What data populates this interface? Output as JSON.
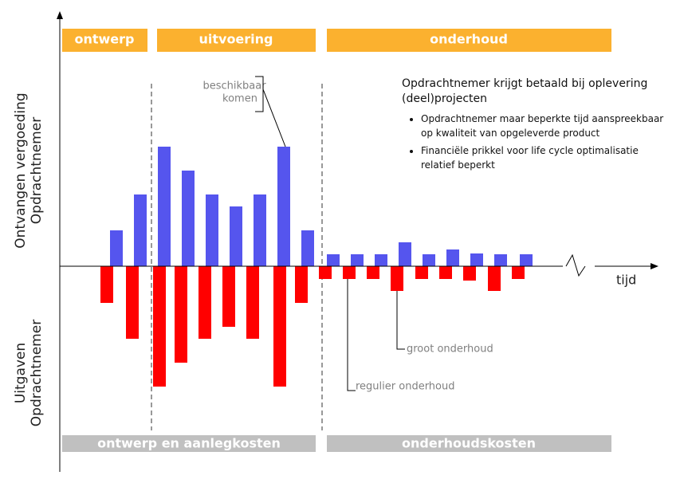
{
  "top_band": {
    "items": [
      "ontwerp",
      "uitvoering",
      "onderhoud"
    ]
  },
  "bottom_band": {
    "items": [
      "ontwerp en aanlegkosten",
      "onderhoudskosten"
    ]
  },
  "y_label_top": [
    "Ontvangen vergoeding",
    "Opdrachtnemer"
  ],
  "y_label_bottom": [
    "Uitgaven",
    "Opdrachtnemer"
  ],
  "x_label": "tijd",
  "annotations": {
    "available": [
      "beschikbaar",
      "komen"
    ],
    "major": "groot onderhoud",
    "regular": "regulier onderhoud"
  },
  "info_box": {
    "heading": "Opdrachtnemer krijgt betaald bij oplevering (deel)projecten",
    "bullets": [
      "Opdrachtnemer maar beperkte tijd aanspreekbaar op kwaliteit van opgeleverde product",
      "Financiële prikkel voor life cycle optimalisatie relatief beperkt"
    ]
  }
}
